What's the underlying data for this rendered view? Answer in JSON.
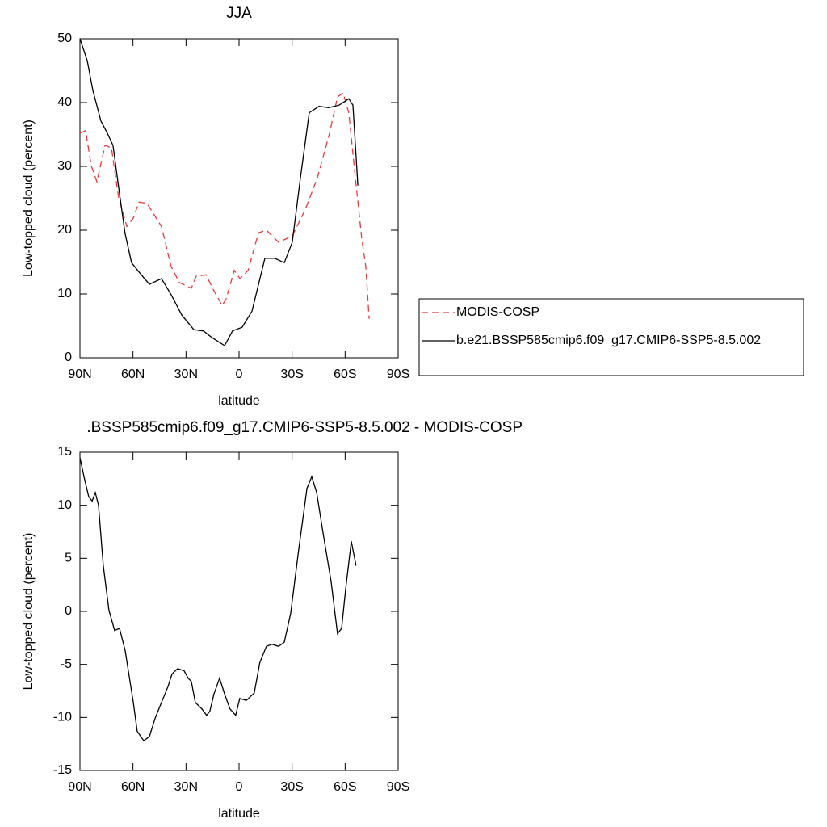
{
  "chart_data": [
    {
      "type": "line",
      "title": "JJA",
      "xlabel": "latitude",
      "ylabel": "Low-topped cloud (percent)",
      "xlim": [
        90,
        -90
      ],
      "xticks": [
        {
          "value": 90,
          "label": "90N"
        },
        {
          "value": 60,
          "label": "60N"
        },
        {
          "value": 30,
          "label": "30N"
        },
        0,
        {
          "value": -30,
          "label": "30S"
        },
        {
          "value": -60,
          "label": "60S"
        },
        {
          "value": -90,
          "label": "90S"
        }
      ],
      "ylim": [
        0,
        50
      ],
      "yticks": [
        0,
        10,
        20,
        30,
        40,
        50
      ],
      "series": [
        {
          "name": "MODIS-COSP",
          "color": "#e8383d",
          "linestyle": "dashed",
          "x": [
            90,
            86.8,
            83.6,
            80.4,
            75.8,
            72.2,
            68.1,
            63.5,
            59.8,
            56.6,
            52.1,
            43.9,
            38.4,
            33.8,
            27.0,
            24.2,
            18.7,
            14.2,
            9.6,
            7.3,
            2.7,
            -0.5,
            -5.1,
            -11.0,
            -15.5,
            -22.4,
            -30.1,
            -37.4,
            -44.3,
            -51.2,
            -55.7,
            -58.9,
            -62.1,
            -65.8,
            -69.4,
            -71.7,
            -73.6
          ],
          "values": [
            35.2,
            35.6,
            30.1,
            27.6,
            33.3,
            32.9,
            25.1,
            20.6,
            21.9,
            24.4,
            24.2,
            20.6,
            14.3,
            11.8,
            10.9,
            12.8,
            13.0,
            10.5,
            8.2,
            9.2,
            13.7,
            12.4,
            13.7,
            19.6,
            20.0,
            18.1,
            19.1,
            23.2,
            28.2,
            35.2,
            40.9,
            41.5,
            38.4,
            28.2,
            18.7,
            14.3,
            6.1
          ]
        },
        {
          "name": "b.e21.BSSP585cmip6.f09_g17.CMIP6-SSP5-8.5.002",
          "color": "#000000",
          "linestyle": "solid",
          "x": [
            90,
            85.9,
            82.7,
            78.1,
            74.5,
            71.3,
            67.6,
            64.4,
            60.8,
            55.3,
            50.7,
            43.9,
            38.4,
            32.4,
            25.6,
            20.1,
            15.5,
            8.2,
            3.7,
            -1.8,
            -7.3,
            -14.6,
            -20.1,
            -25.6,
            -30.1,
            -34.7,
            -39.7,
            -45.2,
            -50.7,
            -56.6,
            -62.1,
            -64.4,
            -67.2
          ],
          "values": [
            50,
            46.6,
            41.9,
            37.1,
            35.2,
            33.3,
            25.7,
            19.4,
            14.9,
            13.0,
            11.5,
            12.4,
            9.9,
            6.7,
            4.4,
            4.2,
            3.2,
            1.9,
            4.2,
            4.8,
            7.3,
            15.6,
            15.6,
            14.9,
            18.1,
            28.2,
            38.4,
            39.4,
            39.2,
            39.6,
            40.6,
            39.6,
            27.0
          ]
        }
      ]
    },
    {
      "type": "line",
      "title": ".BSSP585cmip6.f09_g17.CMIP6-SSP5-8.5.002 - MODIS-COSP",
      "xlabel": "latitude",
      "ylabel": "Low-topped cloud (percent)",
      "xlim": [
        90,
        -90
      ],
      "xticks": [
        {
          "value": 90,
          "label": "90N"
        },
        {
          "value": 60,
          "label": "60N"
        },
        {
          "value": 30,
          "label": "30N"
        },
        0,
        {
          "value": -30,
          "label": "30S"
        },
        {
          "value": -60,
          "label": "60S"
        },
        {
          "value": -90,
          "label": "90S"
        }
      ],
      "ylim": [
        -15,
        15
      ],
      "yticks": [
        -15,
        -10,
        -5,
        0,
        5,
        10,
        15
      ],
      "series": [
        {
          "color": "#000000",
          "linestyle": "solid",
          "x": [
            90,
            87.7,
            85,
            83.1,
            81.3,
            79.5,
            76.8,
            73.6,
            70.4,
            67.6,
            64.4,
            61.2,
            59.8,
            57.6,
            53.9,
            50.7,
            47.5,
            43.9,
            40.2,
            37.9,
            34.7,
            31.1,
            28.8,
            27.0,
            24.7,
            21.0,
            18.3,
            16.5,
            14.2,
            11.0,
            8.2,
            5.1,
            1.9,
            -0.4,
            -4.1,
            -8.6,
            -11.8,
            -15.5,
            -18.7,
            -22.4,
            -25.6,
            -29.2,
            -33.8,
            -38.4,
            -41.1,
            -43.9,
            -47.5,
            -52.1,
            -55.7,
            -58.0,
            -60.3,
            -63.5,
            -66.2
          ],
          "values": [
            14.5,
            12.7,
            10.8,
            10.4,
            11.2,
            10.0,
            4.3,
            0.1,
            -1.8,
            -1.6,
            -3.7,
            -7.1,
            -8.6,
            -11.3,
            -12.2,
            -11.8,
            -10.1,
            -8.6,
            -7.1,
            -5.9,
            -5.4,
            -5.6,
            -6.3,
            -6.6,
            -8.6,
            -9.2,
            -9.8,
            -9.4,
            -7.8,
            -6.3,
            -7.8,
            -9.2,
            -9.8,
            -8.2,
            -8.4,
            -7.7,
            -4.8,
            -3.3,
            -3.1,
            -3.3,
            -2.9,
            -0.2,
            5.9,
            11.6,
            12.7,
            11.2,
            7.4,
            2.8,
            -2.1,
            -1.6,
            2.1,
            6.6,
            4.3
          ]
        }
      ]
    }
  ]
}
